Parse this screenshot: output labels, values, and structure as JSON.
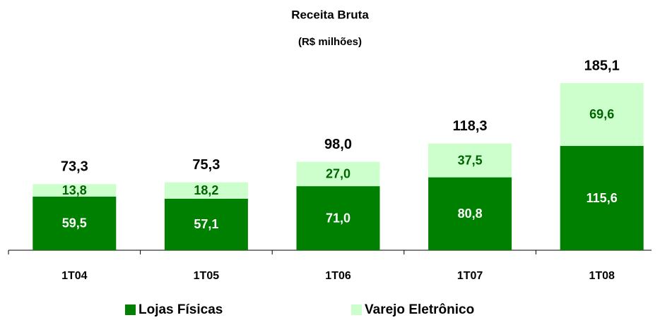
{
  "chart_data": {
    "type": "stacked_bar",
    "title": "Receita Bruta",
    "subtitle": "(R$ milhões)",
    "categories": [
      "1T04",
      "1T05",
      "1T06",
      "1T07",
      "1T08"
    ],
    "series": [
      {
        "name": "Lojas Físicas",
        "color": "#008000",
        "label_color": "#ffffff",
        "values": [
          59.5,
          57.1,
          71.0,
          80.8,
          115.6
        ],
        "value_labels": [
          "59,5",
          "57,1",
          "71,0",
          "80,8",
          "115,6"
        ]
      },
      {
        "name": "Varejo Eletrônico",
        "color": "#ccffcc",
        "label_color": "#006400",
        "values": [
          13.8,
          18.2,
          27.0,
          37.5,
          69.6
        ],
        "value_labels": [
          "13,8",
          "18,2",
          "27,0",
          "37,5",
          "69,6"
        ]
      }
    ],
    "totals": [
      73.3,
      75.3,
      98.0,
      118.3,
      185.1
    ],
    "total_labels": [
      "73,3",
      "75,3",
      "98,0",
      "118,3",
      "185,1"
    ]
  }
}
